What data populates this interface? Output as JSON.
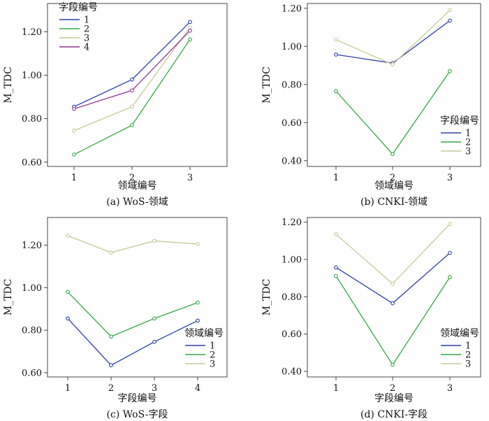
{
  "colors": {
    "blue": "#2b3fa5",
    "green": "#35a845",
    "beige": "#c8c898",
    "purple": "#8e3a8e"
  },
  "chart_data": [
    {
      "id": "a",
      "type": "line",
      "caption": "(a) WoS-领域",
      "xlabel": "领域编号",
      "ylabel": "M_TDC",
      "categories": [
        "1",
        "2",
        "3"
      ],
      "ylim": [
        0.58,
        1.33
      ],
      "yticks": [
        "0.60",
        "0.80",
        "1.00",
        "1.20"
      ],
      "legend": {
        "title": "字段编号",
        "position": "top-left"
      },
      "series": [
        {
          "name": "1",
          "color": "blue",
          "values": [
            0.855,
            0.98,
            1.245
          ]
        },
        {
          "name": "2",
          "color": "green",
          "values": [
            0.635,
            0.77,
            1.165
          ]
        },
        {
          "name": "3",
          "color": "beige",
          "values": [
            0.745,
            0.855,
            1.22
          ]
        },
        {
          "name": "4",
          "color": "purple",
          "values": [
            0.845,
            0.93,
            1.205
          ]
        }
      ]
    },
    {
      "id": "b",
      "type": "line",
      "caption": "(b) CNKI-领域",
      "xlabel": "领域编号",
      "ylabel": "M_TDC",
      "categories": [
        "1",
        "2",
        "3"
      ],
      "ylim": [
        0.37,
        1.225
      ],
      "yticks": [
        "0.40",
        "0.60",
        "0.80",
        "1.00",
        "1.20"
      ],
      "legend": {
        "title": "字段编号",
        "position": "bottom-right"
      },
      "series": [
        {
          "name": "1",
          "color": "blue",
          "values": [
            0.957,
            0.912,
            1.135
          ]
        },
        {
          "name": "2",
          "color": "green",
          "values": [
            0.765,
            0.435,
            0.87
          ]
        },
        {
          "name": "3",
          "color": "beige",
          "values": [
            1.035,
            0.905,
            1.19
          ]
        }
      ]
    },
    {
      "id": "c",
      "type": "line",
      "caption": "(c) WoS-字段",
      "xlabel": "字段编号",
      "ylabel": "M_TDC",
      "categories": [
        "1",
        "2",
        "3",
        "4"
      ],
      "ylim": [
        0.58,
        1.33
      ],
      "yticks": [
        "0.60",
        "0.80",
        "1.00",
        "1.20"
      ],
      "legend": {
        "title": "领域编号",
        "position": "bottom-right"
      },
      "series": [
        {
          "name": "1",
          "color": "blue",
          "values": [
            0.855,
            0.635,
            0.745,
            0.845
          ]
        },
        {
          "name": "2",
          "color": "green",
          "values": [
            0.98,
            0.77,
            0.855,
            0.93
          ]
        },
        {
          "name": "3",
          "color": "beige",
          "values": [
            1.245,
            1.165,
            1.22,
            1.205
          ]
        }
      ]
    },
    {
      "id": "d",
      "type": "line",
      "caption": "(d) CNKI-字段",
      "xlabel": "字段编号",
      "ylabel": "M_TDC",
      "categories": [
        "1",
        "2",
        "3"
      ],
      "ylim": [
        0.37,
        1.225
      ],
      "yticks": [
        "0.40",
        "0.60",
        "0.80",
        "1.00",
        "1.20"
      ],
      "legend": {
        "title": "领域编号",
        "position": "bottom-right"
      },
      "series": [
        {
          "name": "1",
          "color": "blue",
          "values": [
            0.957,
            0.765,
            1.035
          ]
        },
        {
          "name": "2",
          "color": "green",
          "values": [
            0.912,
            0.435,
            0.905
          ]
        },
        {
          "name": "3",
          "color": "beige",
          "values": [
            1.135,
            0.87,
            1.19
          ]
        }
      ]
    }
  ]
}
